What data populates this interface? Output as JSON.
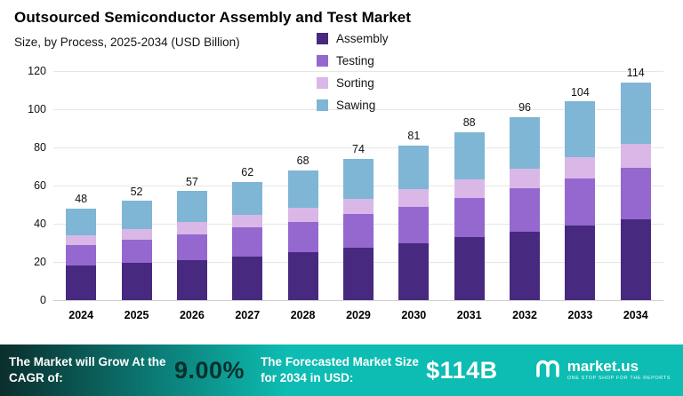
{
  "title": "Outsourced Semiconductor Assembly and Test Market",
  "subtitle": "Size, by Process, 2025-2034 (USD Billion)",
  "chart_data": {
    "type": "bar",
    "stacked": true,
    "title": "Outsourced Semiconductor Assembly and Test Market",
    "subtitle": "Size, by Process, 2025-2034 (USD Billion)",
    "categories": [
      "2024",
      "2025",
      "2026",
      "2027",
      "2028",
      "2029",
      "2030",
      "2031",
      "2032",
      "2033",
      "2034"
    ],
    "series": [
      {
        "name": "Assembly",
        "color": "#482980",
        "values": [
          18,
          19.5,
          21,
          23,
          25,
          27.5,
          30,
          33,
          36,
          39,
          42.5
        ]
      },
      {
        "name": "Testing",
        "color": "#9468cf",
        "values": [
          11,
          12,
          13.5,
          15,
          16,
          17.5,
          19,
          20.5,
          22.5,
          24.5,
          27
        ]
      },
      {
        "name": "Sorting",
        "color": "#d9b8e8",
        "values": [
          5,
          5.5,
          6.5,
          6.5,
          7.5,
          8,
          9,
          10,
          10.5,
          11.5,
          12.5
        ]
      },
      {
        "name": "Sawing",
        "color": "#7fb5d5",
        "values": [
          14,
          15,
          16,
          17.5,
          19.5,
          21,
          23,
          24.5,
          27,
          29,
          32
        ]
      }
    ],
    "totals": [
      48,
      52,
      57,
      62,
      68,
      74,
      81,
      88,
      96,
      104,
      114
    ],
    "ylabel": "",
    "xlabel": "",
    "ylim": [
      0,
      120
    ],
    "yticks": [
      0,
      20,
      40,
      60,
      80,
      100,
      120
    ],
    "grid": true,
    "legend_position": "top-center"
  },
  "footer": {
    "cagr_label": "The Market will Grow At the CAGR of:",
    "cagr_value": "9.00%",
    "forecast_label": "The Forecasted Market Size for 2034 in USD:",
    "forecast_value": "$114B",
    "brand": "market.us",
    "brand_tagline": "ONE STOP SHOP FOR THE REPORTS",
    "colors": {
      "teal": "#0dbcb2",
      "dark": "#0a2e2c",
      "cagr_text": "#06302d"
    }
  }
}
